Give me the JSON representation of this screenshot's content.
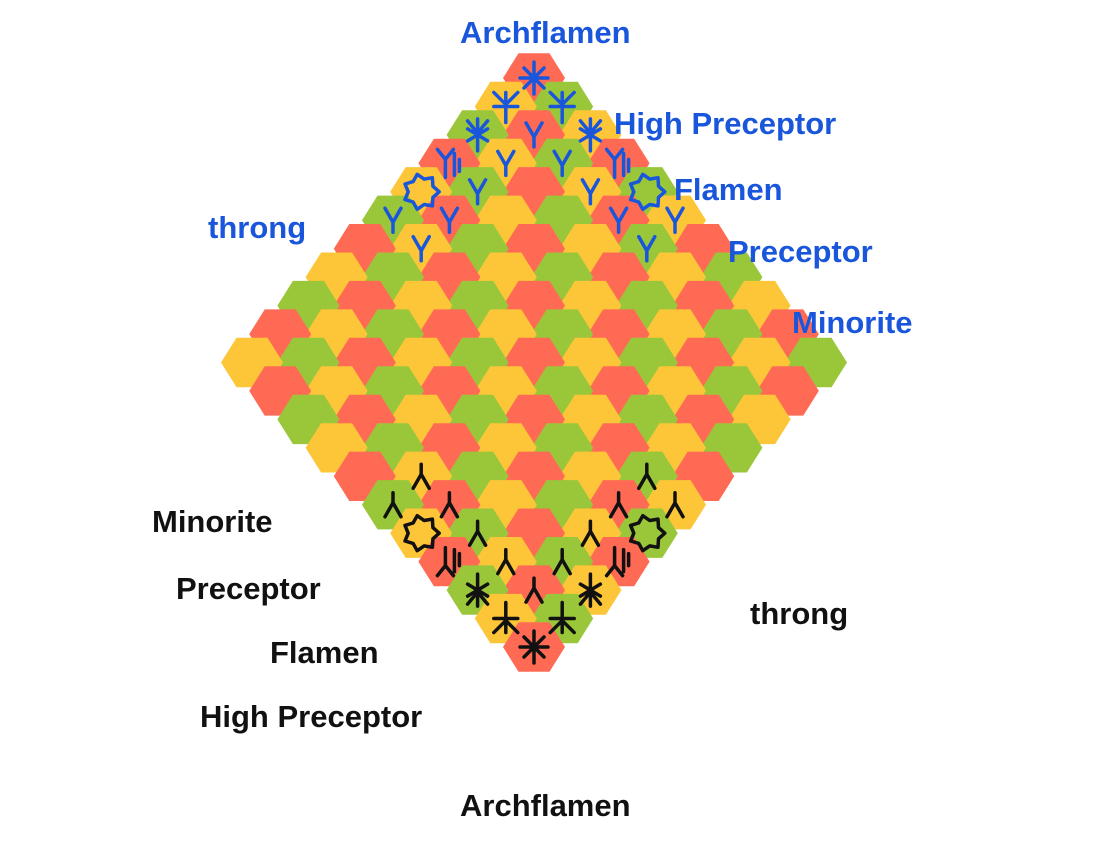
{
  "board": {
    "rows": 11,
    "cols": 11,
    "cell_colors": [
      "#ff6a55",
      "#fdc638",
      "#9ac73a"
    ]
  },
  "colors": {
    "blue": "#1a56db",
    "black": "#111111"
  },
  "labels": {
    "blue_archflamen": "Archflamen",
    "blue_high_preceptor": "High Preceptor",
    "blue_flamen": "Flamen",
    "blue_preceptor": "Preceptor",
    "blue_minorite": "Minorite",
    "blue_throng": "throng",
    "black_archflamen": "Archflamen",
    "black_high_preceptor": "High Preceptor",
    "black_flamen": "Flamen",
    "black_preceptor": "Preceptor",
    "black_minorite": "Minorite",
    "black_throng": "throng"
  },
  "pieces": [
    {
      "side": "blue",
      "type": "archflamen",
      "row": 0,
      "col": 10
    },
    {
      "side": "blue",
      "type": "high-preceptor",
      "row": 0,
      "col": 9
    },
    {
      "side": "blue",
      "type": "high-preceptor",
      "row": 1,
      "col": 10
    },
    {
      "side": "blue",
      "type": "flamen",
      "row": 0,
      "col": 8
    },
    {
      "side": "blue",
      "type": "flamen",
      "row": 2,
      "col": 10
    },
    {
      "side": "blue",
      "type": "preceptor",
      "row": 0,
      "col": 7
    },
    {
      "side": "blue",
      "type": "preceptor",
      "row": 3,
      "col": 10
    },
    {
      "side": "blue",
      "type": "minorite",
      "row": 0,
      "col": 6
    },
    {
      "side": "blue",
      "type": "minorite",
      "row": 4,
      "col": 10
    },
    {
      "side": "blue",
      "type": "throng",
      "row": 0,
      "col": 5
    },
    {
      "side": "blue",
      "type": "throng",
      "row": 1,
      "col": 9
    },
    {
      "side": "blue",
      "type": "throng",
      "row": 1,
      "col": 8
    },
    {
      "side": "blue",
      "type": "throng",
      "row": 1,
      "col": 7
    },
    {
      "side": "blue",
      "type": "throng",
      "row": 1,
      "col": 6
    },
    {
      "side": "blue",
      "type": "throng",
      "row": 1,
      "col": 5
    },
    {
      "side": "blue",
      "type": "throng",
      "row": 2,
      "col": 9
    },
    {
      "side": "blue",
      "type": "throng",
      "row": 3,
      "col": 9
    },
    {
      "side": "blue",
      "type": "throng",
      "row": 4,
      "col": 9
    },
    {
      "side": "blue",
      "type": "throng",
      "row": 5,
      "col": 9
    },
    {
      "side": "blue",
      "type": "throng",
      "row": 5,
      "col": 10
    },
    {
      "side": "black",
      "type": "archflamen",
      "row": 10,
      "col": 0
    },
    {
      "side": "black",
      "type": "high-preceptor",
      "row": 10,
      "col": 1
    },
    {
      "side": "black",
      "type": "high-preceptor",
      "row": 9,
      "col": 0
    },
    {
      "side": "black",
      "type": "flamen",
      "row": 10,
      "col": 2
    },
    {
      "side": "black",
      "type": "flamen",
      "row": 8,
      "col": 0
    },
    {
      "side": "black",
      "type": "preceptor",
      "row": 10,
      "col": 3
    },
    {
      "side": "black",
      "type": "preceptor",
      "row": 7,
      "col": 0
    },
    {
      "side": "black",
      "type": "minorite",
      "row": 10,
      "col": 4
    },
    {
      "side": "black",
      "type": "minorite",
      "row": 6,
      "col": 0
    },
    {
      "side": "black",
      "type": "throng",
      "row": 10,
      "col": 5
    },
    {
      "side": "black",
      "type": "throng",
      "row": 9,
      "col": 1
    },
    {
      "side": "black",
      "type": "throng",
      "row": 9,
      "col": 2
    },
    {
      "side": "black",
      "type": "throng",
      "row": 9,
      "col": 3
    },
    {
      "side": "black",
      "type": "throng",
      "row": 9,
      "col": 4
    },
    {
      "side": "black",
      "type": "throng",
      "row": 9,
      "col": 5
    },
    {
      "side": "black",
      "type": "throng",
      "row": 8,
      "col": 1
    },
    {
      "side": "black",
      "type": "throng",
      "row": 7,
      "col": 1
    },
    {
      "side": "black",
      "type": "throng",
      "row": 6,
      "col": 1
    },
    {
      "side": "black",
      "type": "throng",
      "row": 5,
      "col": 1
    },
    {
      "side": "black",
      "type": "throng",
      "row": 5,
      "col": 0
    }
  ]
}
